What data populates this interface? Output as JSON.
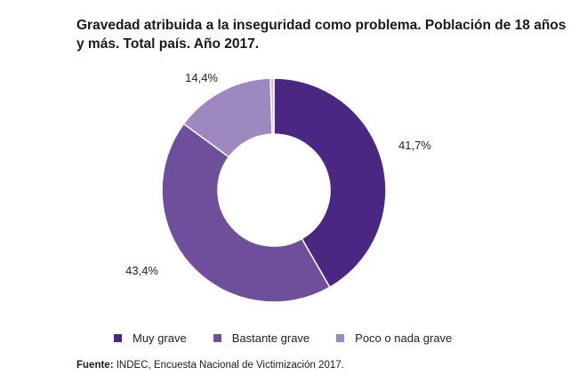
{
  "chart_data": {
    "type": "pie",
    "title": "Gravedad atribuida a la inseguridad como problema. Población de 18 años y más. Total país. Año 2017.",
    "categories": [
      "Muy grave",
      "Bastante grave",
      "Poco o nada grave",
      ""
    ],
    "values": [
      41.7,
      43.4,
      14.4,
      0.5
    ],
    "labels": [
      "41,7%",
      "43,4%",
      "14,4%",
      ""
    ],
    "colors": [
      "#4a2783",
      "#6f4f9c",
      "#9d88c0",
      "#c9bedd"
    ],
    "donut": true,
    "legend_position": "bottom"
  },
  "legend": [
    {
      "label": "Muy grave",
      "color": "#4a2783"
    },
    {
      "label": "Bastante grave",
      "color": "#6f4f9c"
    },
    {
      "label": "Poco o nada grave",
      "color": "#9d88c0"
    }
  ],
  "source": {
    "prefix": "Fuente:",
    "text": " INDEC, Encuesta Nacional de Victimización 2017."
  }
}
